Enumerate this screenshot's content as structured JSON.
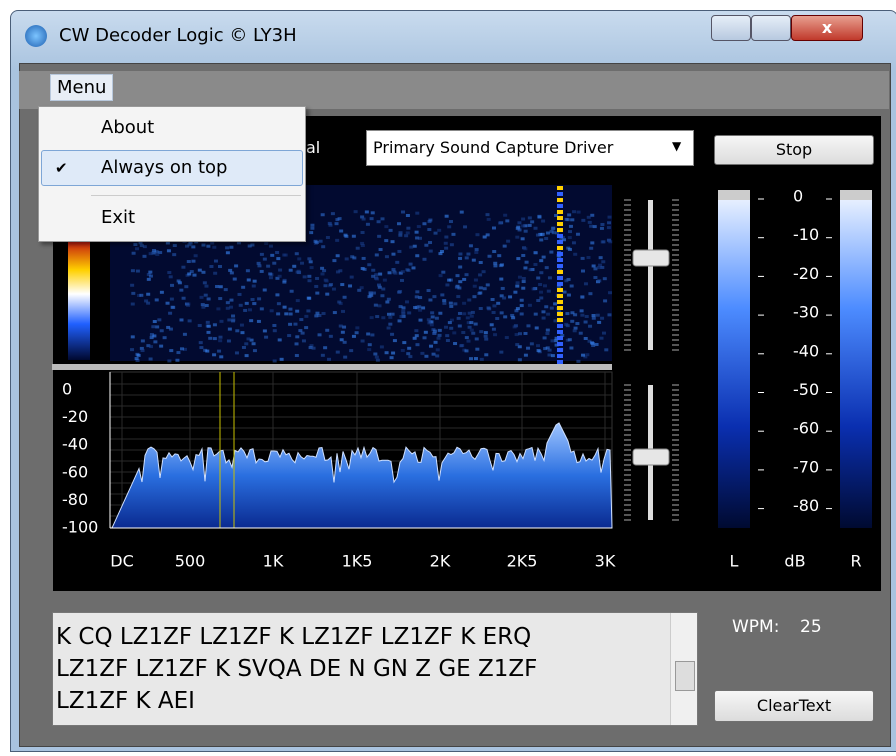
{
  "window": {
    "title": "CW Decoder Logic © LY3H"
  },
  "menu": {
    "label": "Menu",
    "items": [
      "About",
      "Always on top",
      "Exit"
    ]
  },
  "capture": {
    "label": "al",
    "device": "Primary Sound Capture Driver"
  },
  "buttons": {
    "stop": "Stop",
    "clear": "ClearText"
  },
  "meter": {
    "ticks": [
      "0",
      "-10",
      "-20",
      "-30",
      "-40",
      "-50",
      "-60",
      "-70",
      "-80"
    ],
    "labels": [
      "L",
      "dB",
      "R"
    ]
  },
  "spectrum": {
    "y_labels": [
      "0",
      "-20",
      "-40",
      "-60",
      "-80",
      "-100"
    ],
    "x_labels": [
      "DC",
      "500",
      "1K",
      "1K5",
      "2K",
      "2K5",
      "3K"
    ]
  },
  "decoder": {
    "lines": [
      "K CQ LZ1ZF LZ1ZF K LZ1ZF LZ1ZF K ERQ",
      "LZ1ZF LZ1ZF K SVQA DE N GN  Z GE Z1ZF",
      "LZ1ZF K AEI"
    ],
    "wpm_label": "WPM:",
    "wpm": "25"
  }
}
